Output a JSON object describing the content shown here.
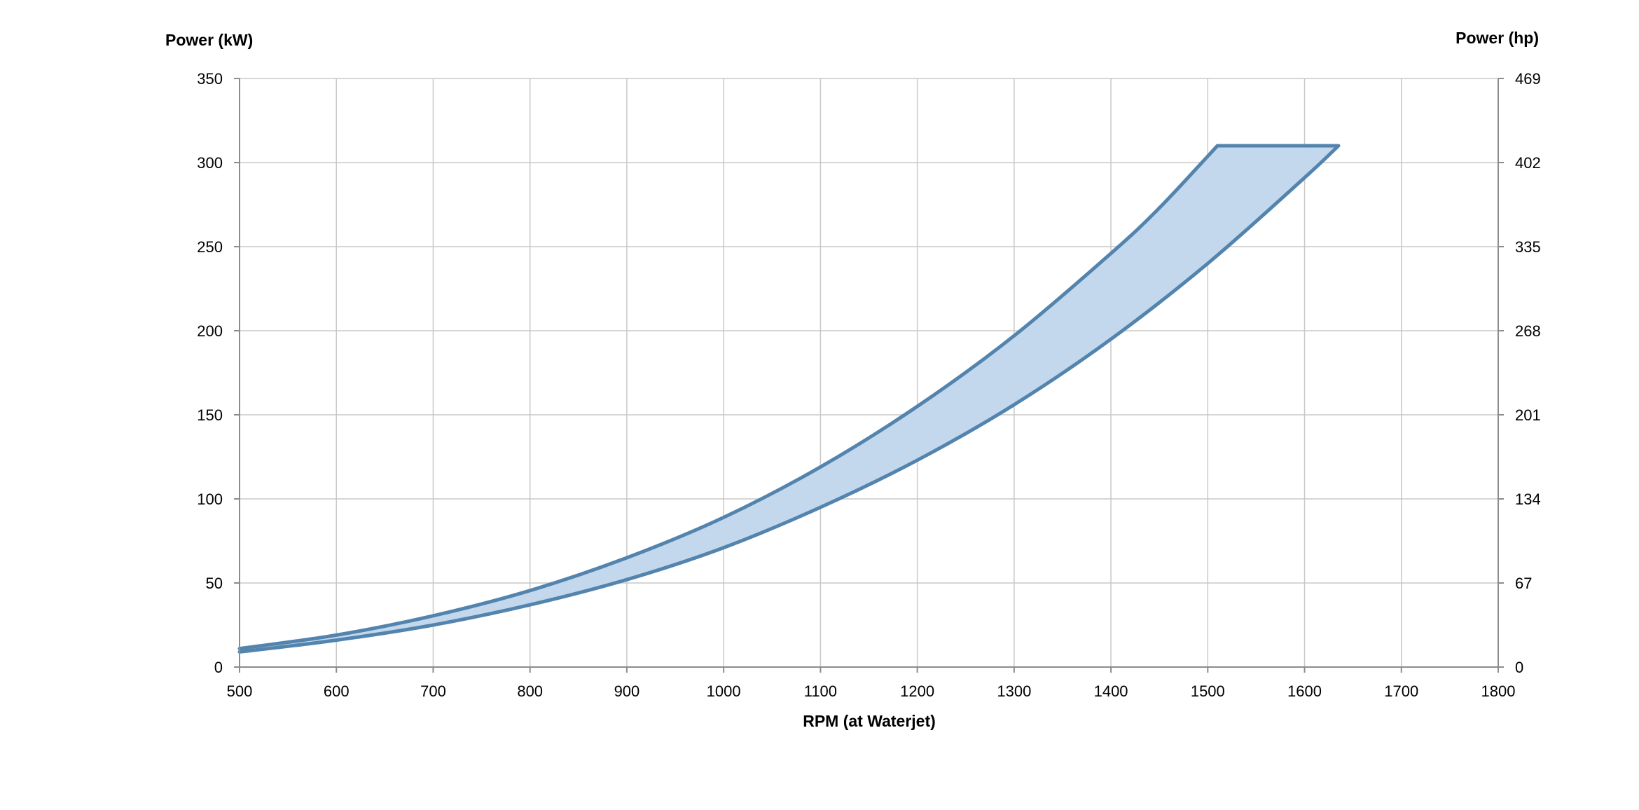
{
  "chart_data": {
    "type": "area",
    "title": "",
    "xlabel": "RPM (at Waterjet)",
    "ylabel_left": "Power (kW)",
    "ylabel_right": "Power (hp)",
    "xlim": [
      500,
      1800
    ],
    "ylim": [
      0,
      350
    ],
    "x_ticks": [
      500,
      600,
      700,
      800,
      900,
      1000,
      1100,
      1200,
      1300,
      1400,
      1500,
      1600,
      1700,
      1800
    ],
    "y_ticks_left": [
      0,
      50,
      100,
      150,
      200,
      250,
      300,
      350
    ],
    "y_ticks_right": [
      "0",
      "67",
      "134",
      "201",
      "268",
      "335",
      "402",
      "469"
    ],
    "grid": true,
    "legend": "none",
    "colors": {
      "line": "#5384ae",
      "fill": "#c3d8ec"
    },
    "series": [
      {
        "x": [
          500,
          600,
          700,
          800,
          900,
          1000,
          1100,
          1200,
          1300,
          1400,
          1450,
          1510,
          1635
        ],
        "y": [
          11,
          19,
          30.5,
          45.5,
          65,
          89,
          119,
          155,
          197,
          246,
          273,
          310,
          310
        ]
      },
      {
        "x": [
          500,
          600,
          700,
          800,
          900,
          1000,
          1100,
          1200,
          1300,
          1400,
          1500,
          1600,
          1635
        ],
        "y": [
          9,
          16,
          25,
          37,
          52,
          71,
          95,
          123,
          156,
          195,
          240,
          291,
          310
        ]
      }
    ]
  }
}
